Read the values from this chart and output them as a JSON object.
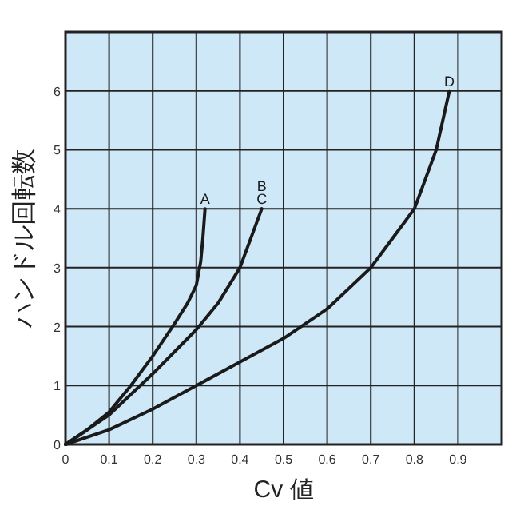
{
  "chart_data": {
    "type": "line",
    "xlabel": "Cv 値",
    "ylabel": "ハンドル回転数",
    "xlim": [
      0,
      1
    ],
    "ylim": [
      0,
      7
    ],
    "xticks": [
      0,
      0.1,
      0.2,
      0.3,
      0.4,
      0.5,
      0.6,
      0.7,
      0.8,
      0.9
    ],
    "yticks": [
      0,
      1,
      2,
      3,
      4,
      5,
      6
    ],
    "grid": true,
    "legend": false,
    "marker": "none",
    "line_style": "solid",
    "series": [
      {
        "name": "A",
        "color": "#1a1a1a",
        "x": [
          0,
          0.05,
          0.1,
          0.15,
          0.2,
          0.25,
          0.28,
          0.3,
          0.31,
          0.315,
          0.32
        ],
        "values": [
          0,
          0.25,
          0.55,
          1,
          1.5,
          2.05,
          2.4,
          2.7,
          3.1,
          3.5,
          4
        ]
      },
      {
        "name": "B\nC",
        "color": "#1a1a1a",
        "x": [
          0,
          0.05,
          0.1,
          0.2,
          0.3,
          0.35,
          0.4,
          0.43,
          0.45
        ],
        "values": [
          0,
          0.25,
          0.5,
          1.2,
          1.95,
          2.4,
          3,
          3.6,
          4
        ]
      },
      {
        "name": "D",
        "color": "#1a1a1a",
        "x": [
          0,
          0.1,
          0.2,
          0.3,
          0.4,
          0.5,
          0.6,
          0.7,
          0.75,
          0.8,
          0.85,
          0.88
        ],
        "values": [
          0,
          0.25,
          0.6,
          1,
          1.4,
          1.8,
          2.3,
          3,
          3.5,
          4,
          5,
          6
        ]
      }
    ]
  }
}
